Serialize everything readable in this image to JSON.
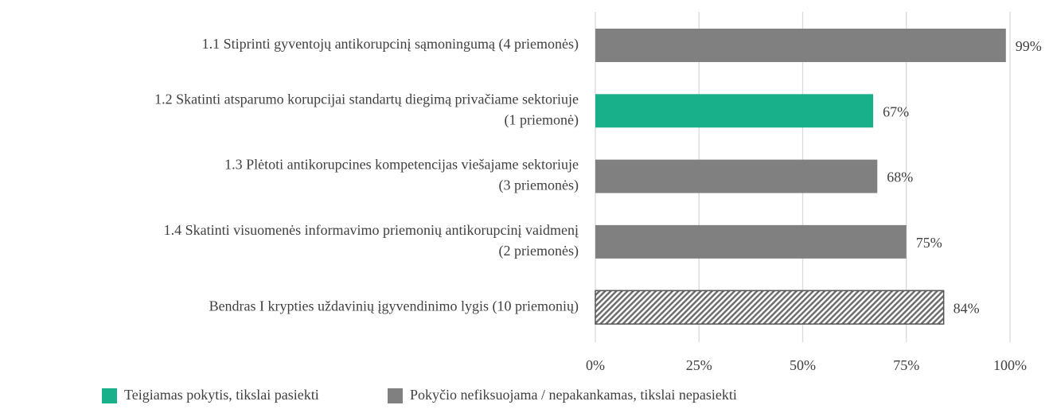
{
  "chart_data": {
    "type": "barh",
    "categories": [
      [
        "1.1 Stiprinti gyventojų antikorupcinį sąmoningumą (4 priemonės)"
      ],
      [
        "1.2 Skatinti atsparumo korupcijai standartų diegimą privačiame sektoriuje",
        "(1 priemonė)"
      ],
      [
        "1.3 Plėtoti antikorupcines kompetencijas viešajame sektoriuje",
        "(3 priemonės)"
      ],
      [
        "1.4 Skatinti visuomenės informavimo priemonių antikorupcinį vaidmenį",
        "(2 priemonės)"
      ],
      [
        "Bendras I krypties uždavinių įgyvendinimo lygis (10 priemonių)"
      ]
    ],
    "values": [
      99,
      67,
      68,
      75,
      84
    ],
    "value_labels": [
      "99%",
      "67%",
      "68%",
      "75%",
      "84%"
    ],
    "colors": [
      "#808080",
      "#17b08a",
      "#808080",
      "#808080",
      "#808080"
    ],
    "patterns": [
      "solid",
      "solid",
      "solid",
      "solid",
      "hatch"
    ],
    "xlim": [
      0,
      100
    ],
    "xticks": [
      {
        "value": 0,
        "label": "0%"
      },
      {
        "value": 25,
        "label": "25%"
      },
      {
        "value": 50,
        "label": "50%"
      },
      {
        "value": 75,
        "label": "75%"
      },
      {
        "value": 100,
        "label": "100%"
      }
    ],
    "grid": true,
    "legend": [
      {
        "name": "Teigiamas pokytis, tikslai pasiekti",
        "color": "#17b08a"
      },
      {
        "name": "Pokyčio nefiksuojama / nepakankamas, tikslai nepasiekti",
        "color": "#808080"
      }
    ]
  }
}
